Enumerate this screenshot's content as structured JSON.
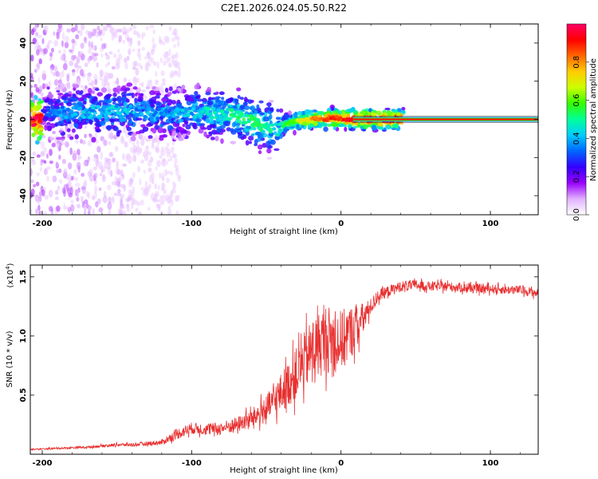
{
  "title": "C2E1.2026.024.05.50.R22",
  "chart_data": [
    {
      "type": "heatmap",
      "title": "C2E1.2026.024.05.50.R22",
      "xlabel": "Height of straight line (km)",
      "ylabel": "Frequency (Hz)",
      "xlim": [
        -208,
        132
      ],
      "ylim": [
        -50,
        50
      ],
      "xticks": [
        {
          "value": -200,
          "label": "-200"
        },
        {
          "value": -100,
          "label": "-100"
        },
        {
          "value": 0,
          "label": "0"
        },
        {
          "value": 100,
          "label": "100"
        }
      ],
      "yticks": [
        {
          "value": -40,
          "label": "-40"
        },
        {
          "value": -20,
          "label": "-20"
        },
        {
          "value": 0,
          "label": "0"
        },
        {
          "value": 20,
          "label": "20"
        },
        {
          "value": 40,
          "label": "40"
        }
      ],
      "ridge": [
        {
          "x": -200,
          "f": 3,
          "a": 0.3
        },
        {
          "x": -180,
          "f": 4,
          "a": 0.4
        },
        {
          "x": -160,
          "f": 4,
          "a": 0.42
        },
        {
          "x": -140,
          "f": 4,
          "a": 0.4
        },
        {
          "x": -120,
          "f": 3,
          "a": 0.38
        },
        {
          "x": -100,
          "f": 4,
          "a": 0.4
        },
        {
          "x": -80,
          "f": 3,
          "a": 0.48
        },
        {
          "x": -70,
          "f": 2,
          "a": 0.5
        },
        {
          "x": -60,
          "f": -1,
          "a": 0.52
        },
        {
          "x": -50,
          "f": -4,
          "a": 0.5
        },
        {
          "x": -42,
          "f": -6,
          "a": 0.46
        },
        {
          "x": -38,
          "f": -3,
          "a": 0.55
        },
        {
          "x": -30,
          "f": -1,
          "a": 0.65
        },
        {
          "x": -20,
          "f": 0,
          "a": 0.78
        },
        {
          "x": -10,
          "f": 0.5,
          "a": 0.88
        },
        {
          "x": 0,
          "f": 0.5,
          "a": 0.9
        },
        {
          "x": 10,
          "f": 0,
          "a": 0.97
        },
        {
          "x": 132,
          "f": 0,
          "a": 0.97
        }
      ],
      "colorbar": {
        "label": "Normalized spectral amplitude",
        "range": [
          0.0,
          1.0
        ],
        "ticks": [
          {
            "value": 0.0,
            "label": "0.0"
          },
          {
            "value": 0.2,
            "label": "0.2"
          },
          {
            "value": 0.4,
            "label": "0.4"
          },
          {
            "value": 0.6,
            "label": "0.6"
          },
          {
            "value": 0.8,
            "label": "0.8"
          }
        ],
        "colors": [
          "#ffffff",
          "#e0b0ff",
          "#9900ff",
          "#3300ff",
          "#0066ff",
          "#00ccff",
          "#00ff99",
          "#33ff00",
          "#ccff00",
          "#ffcc00",
          "#ff6600",
          "#ff0000",
          "#ff0066"
        ]
      }
    },
    {
      "type": "line",
      "xlabel": "Height of straight line (km)",
      "ylabel": "SNR (10 * v/v)",
      "scale_label": "(x10",
      "scale_exp": "4",
      "xlim": [
        -208,
        132
      ],
      "ylim": [
        0,
        16000
      ],
      "xticks": [
        {
          "value": -200,
          "label": "-200"
        },
        {
          "value": -100,
          "label": "-100"
        },
        {
          "value": 0,
          "label": "0"
        },
        {
          "value": 100,
          "label": "100"
        }
      ],
      "yticks": [
        {
          "value": 5000,
          "label": "0.5"
        },
        {
          "value": 10000,
          "label": "1.0"
        },
        {
          "value": 15000,
          "label": "1.5"
        }
      ],
      "color": "#e83030",
      "series": [
        {
          "name": "SNR",
          "x": [
            -208,
            -190,
            -170,
            -150,
            -140,
            -130,
            -120,
            -110,
            -100,
            -90,
            -80,
            -70,
            -60,
            -50,
            -40,
            -30,
            -20,
            -10,
            0,
            10,
            15,
            20,
            25,
            30,
            40,
            50,
            60,
            70,
            80,
            90,
            100,
            110,
            120,
            132
          ],
          "y": [
            400,
            500,
            600,
            800,
            800,
            900,
            1000,
            1700,
            2200,
            2100,
            2200,
            2500,
            3000,
            3800,
            5200,
            6800,
            8700,
            9800,
            9500,
            10800,
            11500,
            12500,
            13400,
            13700,
            14200,
            14300,
            14200,
            14200,
            14100,
            14000,
            14000,
            13900,
            13900,
            13600
          ],
          "noise": [
            50,
            80,
            100,
            130,
            150,
            180,
            220,
            450,
            500,
            500,
            550,
            650,
            800,
            1200,
            1700,
            2200,
            2700,
            2900,
            2700,
            2000,
            1300,
            700,
            550,
            500,
            450,
            450,
            400,
            400,
            400,
            400,
            380,
            380,
            380,
            380
          ]
        }
      ]
    }
  ]
}
